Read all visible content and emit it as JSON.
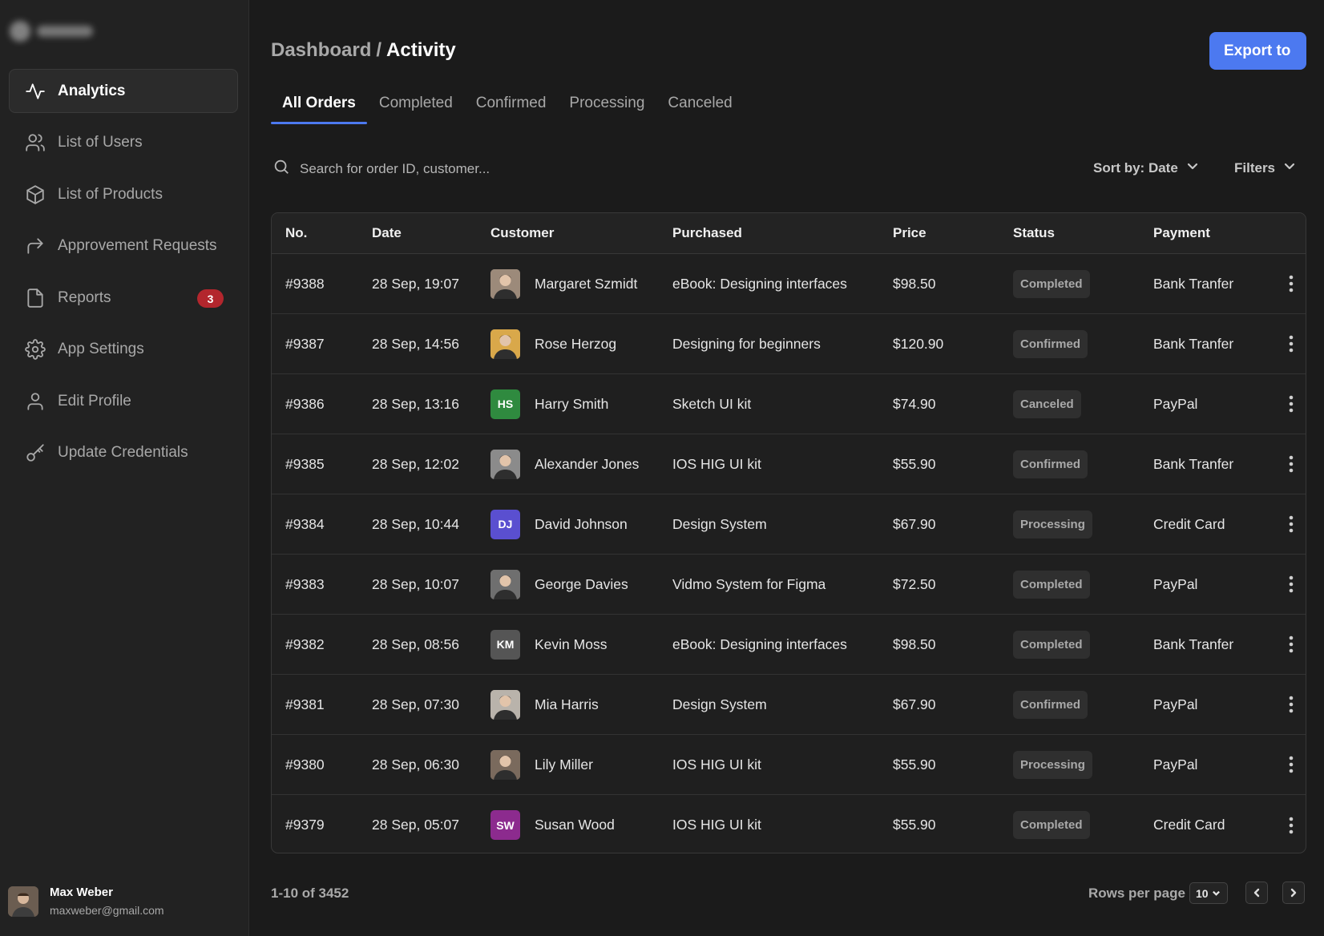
{
  "sidebar": {
    "items": [
      {
        "label": "Analytics",
        "icon": "activity-icon",
        "active": true
      },
      {
        "label": "List of Users",
        "icon": "users-icon"
      },
      {
        "label": "List of Products",
        "icon": "box-icon"
      },
      {
        "label": "Approvement Requests",
        "icon": "forward-arrow-icon"
      },
      {
        "label": "Reports",
        "icon": "file-icon",
        "badge": "3"
      },
      {
        "label": "App Settings",
        "icon": "gear-icon"
      },
      {
        "label": "Edit Profile",
        "icon": "user-icon"
      },
      {
        "label": "Update Credentials",
        "icon": "key-icon"
      }
    ],
    "user": {
      "name": "Max Weber",
      "email": "maxweber@gmail.com"
    }
  },
  "header": {
    "breadcrumb_parent": "Dashboard",
    "breadcrumb_sep": "/",
    "breadcrumb_current": "Activity",
    "export_label": "Export to"
  },
  "tabs": [
    "All Orders",
    "Completed",
    "Confirmed",
    "Processing",
    "Canceled"
  ],
  "search": {
    "placeholder": "Search for order ID, customer..."
  },
  "sort_label": "Sort by: Date",
  "filters_label": "Filters",
  "table": {
    "columns": [
      "No.",
      "Date",
      "Customer",
      "Purchased",
      "Price",
      "Status",
      "Payment"
    ],
    "rows": [
      {
        "no": "#9388",
        "date": "28 Sep, 19:07",
        "customer": "Margaret Szmidt",
        "initials": "",
        "avatar_color": "#9c8a7a",
        "purchased": "eBook: Designing interfaces",
        "price": "$98.50",
        "status": "Completed",
        "payment": "Bank Tranfer"
      },
      {
        "no": "#9387",
        "date": "28 Sep, 14:56",
        "customer": "Rose Herzog",
        "initials": "",
        "avatar_color": "#d9a84a",
        "purchased": "Designing for beginners",
        "price": "$120.90",
        "status": "Confirmed",
        "payment": "Bank Tranfer"
      },
      {
        "no": "#9386",
        "date": "28 Sep, 13:16",
        "customer": "Harry Smith",
        "initials": "HS",
        "avatar_color": "#2f8a3f",
        "purchased": "Sketch UI kit",
        "price": "$74.90",
        "status": "Canceled",
        "payment": "PayPal"
      },
      {
        "no": "#9385",
        "date": "28 Sep, 12:02",
        "customer": "Alexander Jones",
        "initials": "",
        "avatar_color": "#8b8b8b",
        "purchased": "IOS HIG UI kit",
        "price": "$55.90",
        "status": "Confirmed",
        "payment": "Bank Tranfer"
      },
      {
        "no": "#9384",
        "date": "28 Sep, 10:44",
        "customer": "David Johnson",
        "initials": "DJ",
        "avatar_color": "#5a4fd0",
        "purchased": "Design System",
        "price": "$67.90",
        "status": "Processing",
        "payment": "Credit Card"
      },
      {
        "no": "#9383",
        "date": "28 Sep, 10:07",
        "customer": "George Davies",
        "initials": "",
        "avatar_color": "#6f6f6f",
        "purchased": "Vidmo System for Figma",
        "price": "$72.50",
        "status": "Completed",
        "payment": "PayPal"
      },
      {
        "no": "#9382",
        "date": "28 Sep, 08:56",
        "customer": "Kevin Moss",
        "initials": "KM",
        "avatar_color": "#555555",
        "purchased": "eBook: Designing interfaces",
        "price": "$98.50",
        "status": "Completed",
        "payment": "Bank Tranfer"
      },
      {
        "no": "#9381",
        "date": "28 Sep, 07:30",
        "customer": "Mia Harris",
        "initials": "",
        "avatar_color": "#b9b3ab",
        "purchased": "Design System",
        "price": "$67.90",
        "status": "Confirmed",
        "payment": "PayPal"
      },
      {
        "no": "#9380",
        "date": "28 Sep, 06:30",
        "customer": "Lily Miller",
        "initials": "",
        "avatar_color": "#7a6a5d",
        "purchased": "IOS HIG UI kit",
        "price": "$55.90",
        "status": "Processing",
        "payment": "PayPal"
      },
      {
        "no": "#9379",
        "date": "28 Sep, 05:07",
        "customer": "Susan Wood",
        "initials": "SW",
        "avatar_color": "#8c2b8e",
        "purchased": "IOS HIG UI kit",
        "price": "$55.90",
        "status": "Completed",
        "payment": "Credit Card"
      }
    ]
  },
  "pagination": {
    "summary": "1-10 of 3452",
    "rows_label": "Rows per page",
    "rows_value": "10"
  },
  "colors": {
    "accent": "#4c79f0",
    "badge_red": "#b3262d",
    "background": "#1b1b1b",
    "sidebar": "#222222"
  }
}
